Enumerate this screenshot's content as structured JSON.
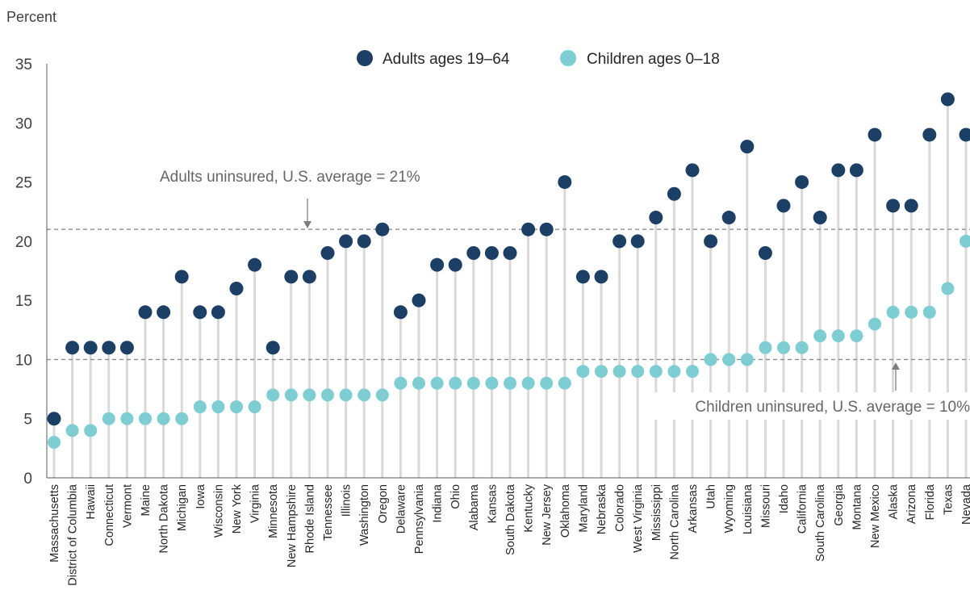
{
  "colors": {
    "adults": "#1c3f66",
    "children": "#7dcdd3",
    "stem": "#d9d9d9",
    "refline": "#8c8c8c",
    "text": "#404040",
    "axis": "#595959"
  },
  "chart_data": {
    "type": "scatter",
    "ylabel": "Percent",
    "ylim": [
      0,
      35
    ],
    "yticks": [
      0,
      5,
      10,
      15,
      20,
      25,
      30,
      35
    ],
    "legend_position": "top-center",
    "categories": [
      "Massachusetts",
      "District of Columbia",
      "Hawaii",
      "Connecticut",
      "Vermont",
      "Maine",
      "North Dakota",
      "Michigan",
      "Iowa",
      "Wisconsin",
      "New York",
      "Virginia",
      "Minnesota",
      "New Hampshire",
      "Rhode Island",
      "Tennessee",
      "Illinois",
      "Washington",
      "Oregon",
      "Delaware",
      "Pennsylvania",
      "Indiana",
      "Ohio",
      "Alabama",
      "Kansas",
      "South Dakota",
      "Kentucky",
      "New Jersey",
      "Oklahoma",
      "Maryland",
      "Nebraska",
      "Colorado",
      "West Virginia",
      "Mississippi",
      "North Carolina",
      "Arkansas",
      "Utah",
      "Wyoming",
      "Louisiana",
      "Missouri",
      "Idaho",
      "California",
      "South Carolina",
      "Georgia",
      "Montana",
      "New Mexico",
      "Alaska",
      "Arizona",
      "Florida",
      "Texas",
      "Nevada"
    ],
    "series": [
      {
        "name": "Adults ages 19–64",
        "values": [
          5,
          11,
          11,
          11,
          11,
          14,
          14,
          17,
          14,
          14,
          16,
          18,
          11,
          17,
          17,
          19,
          20,
          20,
          21,
          14,
          15,
          18,
          18,
          19,
          19,
          19,
          21,
          21,
          25,
          17,
          17,
          20,
          20,
          22,
          24,
          26,
          20,
          22,
          28,
          19,
          23,
          25,
          22,
          26,
          26,
          29,
          23,
          23,
          29,
          32,
          29
        ]
      },
      {
        "name": "Children ages 0–18",
        "values": [
          3,
          4,
          4,
          5,
          5,
          5,
          5,
          5,
          6,
          6,
          6,
          6,
          7,
          7,
          7,
          7,
          7,
          7,
          7,
          8,
          8,
          8,
          8,
          8,
          8,
          8,
          8,
          8,
          8,
          9,
          9,
          9,
          9,
          9,
          9,
          9,
          10,
          10,
          10,
          11,
          11,
          11,
          12,
          12,
          12,
          13,
          14,
          14,
          14,
          16,
          20
        ]
      }
    ],
    "reference_lines": [
      {
        "value": 21,
        "label": "Adults uninsured, U.S. average = 21%"
      },
      {
        "value": 10,
        "label": "Children uninsured, U.S. average = 10%"
      }
    ]
  }
}
